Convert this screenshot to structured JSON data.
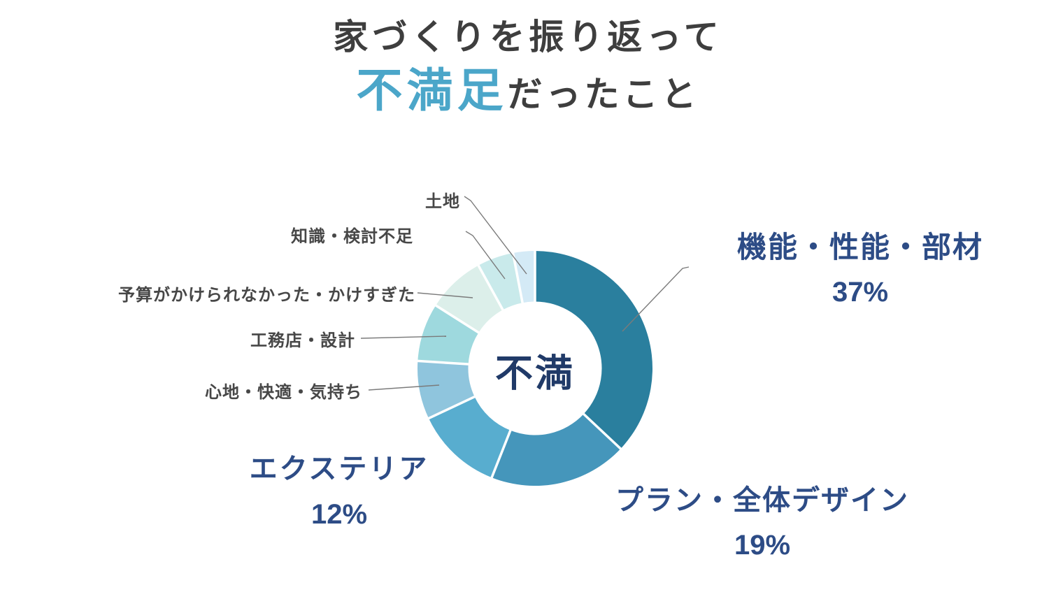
{
  "title": {
    "line1": "家づくりを振り返って",
    "highlight": "不満足",
    "line2_rest": "だったこと"
  },
  "colors": {
    "title_text": "#3e3e3e",
    "title_highlight": "#4ba6c9",
    "big_label_navy": "#2d4c86",
    "center_label_navy": "#203a68",
    "small_label_gray": "#474747",
    "leader_line_gray": "#7b7b7b",
    "background": "#ffffff"
  },
  "chart_data": {
    "type": "pie",
    "subtype": "donut",
    "title": "家づくりを振り返って不満足だったこと",
    "center_text": "不満",
    "legend_position": "callouts",
    "start_angle_deg": 0,
    "direction": "clockwise",
    "segments": [
      {
        "label": "機能・性能・部材",
        "value": 37,
        "value_label": "37%",
        "color": "#2a7f9e"
      },
      {
        "label": "プラン・全体デザイン",
        "value": 19,
        "value_label": "19%",
        "color": "#4596bb"
      },
      {
        "label": "エクステリア",
        "value": 12,
        "value_label": "12%",
        "color": "#58adcf"
      },
      {
        "label": "心地・快適・気持ち",
        "value": 8,
        "value_label": "",
        "color": "#8fc5dd"
      },
      {
        "label": "工務店・設計",
        "value": 8,
        "value_label": "",
        "color": "#9ed9de"
      },
      {
        "label": "予算がかけられなかった・かけすぎた",
        "value": 8,
        "value_label": "",
        "color": "#dcefea"
      },
      {
        "label": "知識・検討不足",
        "value": 5,
        "value_label": "",
        "color": "#c9eaeb"
      },
      {
        "label": "土地",
        "value": 3,
        "value_label": "",
        "color": "#d4eaf6"
      }
    ]
  }
}
